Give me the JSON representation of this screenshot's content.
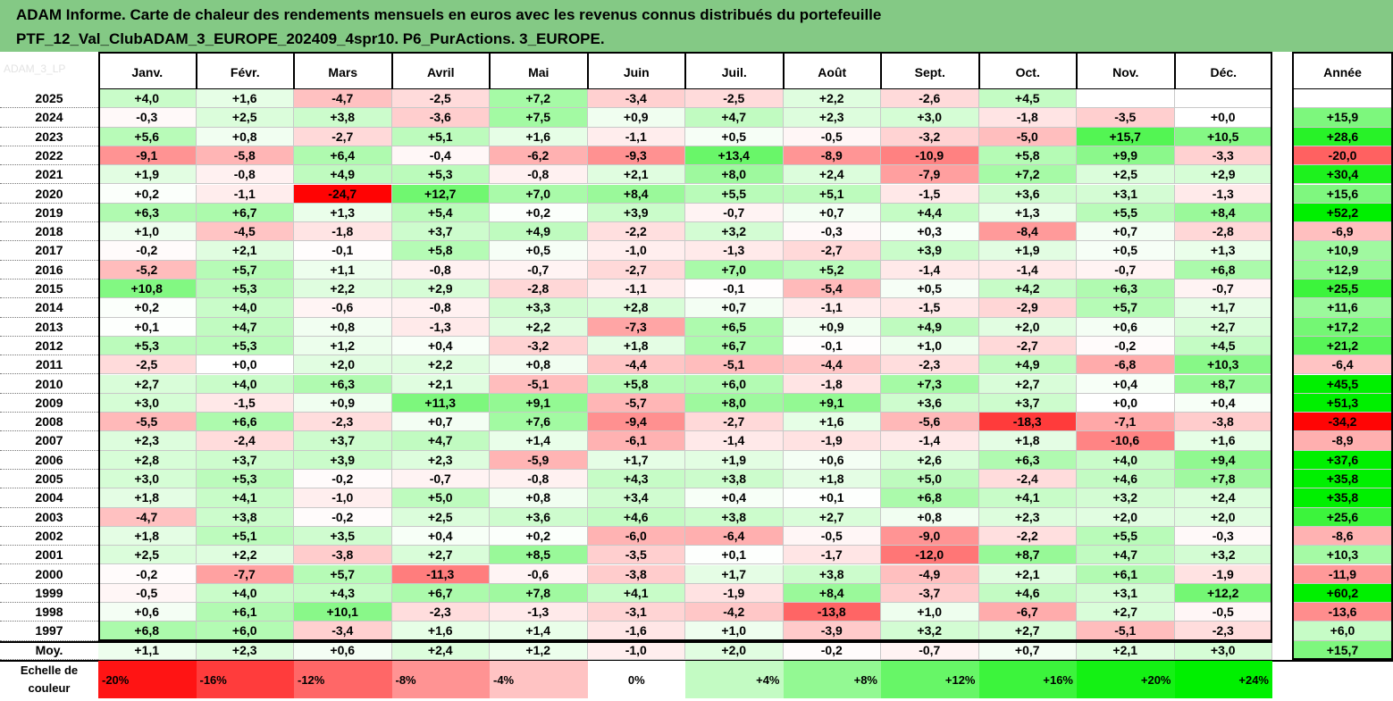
{
  "title": {
    "line1": "ADAM Informe. Carte de chaleur des rendements mensuels en euros avec les revenus connus distribués du portefeuille",
    "line2": "PTF_12_Val_ClubADAM_3_EUROPE_202409_4spr10. P6_PurActions. 3_EUROPE."
  },
  "chart_data": {
    "type": "heatmap",
    "title": "ADAM Informe. Carte de chaleur des rendements mensuels en euros avec les revenus connus distribués du portefeuille PTF_12_Val_ClubADAM_3_EUROPE_202409_4spr10. P6_PurActions. 3_EUROPE.",
    "columns": [
      "Janv.",
      "Févr.",
      "Mars",
      "Avril",
      "Mai",
      "Juin",
      "Juil.",
      "Août",
      "Sept.",
      "Oct.",
      "Nov.",
      "Déc."
    ],
    "annual_column": "Année",
    "rows": [
      {
        "year": "2025",
        "months": [
          4.0,
          1.6,
          -4.7,
          -2.5,
          7.2,
          -3.4,
          -2.5,
          2.2,
          -2.6,
          4.5,
          null,
          null
        ],
        "annual": null
      },
      {
        "year": "2024",
        "months": [
          -0.3,
          2.5,
          3.8,
          -3.6,
          7.5,
          0.9,
          4.7,
          2.3,
          3.0,
          -1.8,
          -3.5,
          0.0
        ],
        "annual": 15.9
      },
      {
        "year": "2023",
        "months": [
          5.6,
          0.8,
          -2.7,
          5.1,
          1.6,
          -1.1,
          0.5,
          -0.5,
          -3.2,
          -5.0,
          15.7,
          10.5
        ],
        "annual": 28.6
      },
      {
        "year": "2022",
        "months": [
          -9.1,
          -5.8,
          6.4,
          -0.4,
          -6.2,
          -9.3,
          13.4,
          -8.9,
          -10.9,
          5.8,
          9.9,
          -3.3
        ],
        "annual": -20.0
      },
      {
        "year": "2021",
        "months": [
          1.9,
          -0.8,
          4.9,
          5.3,
          -0.8,
          2.1,
          8.0,
          2.4,
          -7.9,
          7.2,
          2.5,
          2.9
        ],
        "annual": 30.4
      },
      {
        "year": "2020",
        "months": [
          0.2,
          -1.1,
          -24.7,
          12.7,
          7.0,
          8.4,
          5.5,
          5.1,
          -1.5,
          3.6,
          3.1,
          -1.3
        ],
        "annual": 15.6
      },
      {
        "year": "2019",
        "months": [
          6.3,
          6.7,
          1.3,
          5.4,
          0.2,
          3.9,
          -0.7,
          0.7,
          4.4,
          1.3,
          5.5,
          8.4
        ],
        "annual": 52.2
      },
      {
        "year": "2018",
        "months": [
          1.0,
          -4.5,
          -1.8,
          3.7,
          4.9,
          -2.2,
          3.2,
          -0.3,
          0.3,
          -8.4,
          0.7,
          -2.8
        ],
        "annual": -6.9
      },
      {
        "year": "2017",
        "months": [
          -0.2,
          2.1,
          -0.1,
          5.8,
          0.5,
          -1.0,
          -1.3,
          -2.7,
          3.9,
          1.9,
          0.5,
          1.3
        ],
        "annual": 10.9
      },
      {
        "year": "2016",
        "months": [
          -5.2,
          5.7,
          1.1,
          -0.8,
          -0.7,
          -2.7,
          7.0,
          5.2,
          -1.4,
          -1.4,
          -0.7,
          6.8
        ],
        "annual": 12.9
      },
      {
        "year": "2015",
        "months": [
          10.8,
          5.3,
          2.2,
          2.9,
          -2.8,
          -1.1,
          -0.1,
          -5.4,
          0.5,
          4.2,
          6.3,
          -0.7
        ],
        "annual": 25.5
      },
      {
        "year": "2014",
        "months": [
          0.2,
          4.0,
          -0.6,
          -0.8,
          3.3,
          2.8,
          0.7,
          -1.1,
          -1.5,
          -2.9,
          5.7,
          1.7
        ],
        "annual": 11.6
      },
      {
        "year": "2013",
        "months": [
          0.1,
          4.7,
          0.8,
          -1.3,
          2.2,
          -7.3,
          6.5,
          0.9,
          4.9,
          2.0,
          0.6,
          2.7
        ],
        "annual": 17.2
      },
      {
        "year": "2012",
        "months": [
          5.3,
          5.3,
          1.2,
          0.4,
          -3.2,
          1.8,
          6.7,
          -0.1,
          1.0,
          -2.7,
          -0.2,
          4.5
        ],
        "annual": 21.2
      },
      {
        "year": "2011",
        "months": [
          -2.5,
          0.0,
          2.0,
          2.2,
          0.8,
          -4.4,
          -5.1,
          -4.4,
          -2.3,
          4.9,
          -6.8,
          10.3
        ],
        "annual": -6.4
      },
      {
        "year": "2010",
        "months": [
          2.7,
          4.0,
          6.3,
          2.1,
          -5.1,
          5.8,
          6.0,
          -1.8,
          7.3,
          2.7,
          0.4,
          8.7
        ],
        "annual": 45.5
      },
      {
        "year": "2009",
        "months": [
          3.0,
          -1.5,
          0.9,
          11.3,
          9.1,
          -5.7,
          8.0,
          9.1,
          3.6,
          3.7,
          0.0,
          0.4
        ],
        "annual": 51.3
      },
      {
        "year": "2008",
        "months": [
          -5.5,
          6.6,
          -2.3,
          0.7,
          7.6,
          -9.4,
          -2.7,
          1.6,
          -5.6,
          -18.3,
          -7.1,
          -3.8
        ],
        "annual": -34.2
      },
      {
        "year": "2007",
        "months": [
          2.3,
          -2.4,
          3.7,
          4.7,
          1.4,
          -6.1,
          -1.4,
          -1.9,
          -1.4,
          1.8,
          -10.6,
          1.6
        ],
        "annual": -8.9
      },
      {
        "year": "2006",
        "months": [
          2.8,
          3.7,
          3.9,
          2.3,
          -5.9,
          1.7,
          1.9,
          0.6,
          2.6,
          6.3,
          4.0,
          9.4
        ],
        "annual": 37.6
      },
      {
        "year": "2005",
        "months": [
          3.0,
          5.3,
          -0.2,
          -0.7,
          -0.8,
          4.3,
          3.8,
          1.8,
          5.0,
          -2.4,
          4.6,
          7.8
        ],
        "annual": 35.8
      },
      {
        "year": "2004",
        "months": [
          1.8,
          4.1,
          -1.0,
          5.0,
          0.8,
          3.4,
          0.4,
          0.1,
          6.8,
          4.1,
          3.2,
          2.4
        ],
        "annual": 35.8
      },
      {
        "year": "2003",
        "months": [
          -4.7,
          3.8,
          -0.2,
          2.5,
          3.6,
          4.6,
          3.8,
          2.7,
          0.8,
          2.3,
          2.0,
          2.0
        ],
        "annual": 25.6
      },
      {
        "year": "2002",
        "months": [
          1.8,
          5.1,
          3.5,
          0.4,
          0.2,
          -6.0,
          -6.4,
          -0.5,
          -9.0,
          -2.2,
          5.5,
          -0.3
        ],
        "annual": -8.6
      },
      {
        "year": "2001",
        "months": [
          2.5,
          2.2,
          -3.8,
          2.7,
          8.5,
          -3.5,
          0.1,
          -1.7,
          -12.0,
          8.7,
          4.7,
          3.2
        ],
        "annual": 10.3
      },
      {
        "year": "2000",
        "months": [
          -0.2,
          -7.7,
          5.7,
          -11.3,
          -0.6,
          -3.8,
          1.7,
          3.8,
          -4.9,
          2.1,
          6.1,
          -1.9
        ],
        "annual": -11.9
      },
      {
        "year": "1999",
        "months": [
          -0.5,
          4.0,
          4.3,
          6.7,
          7.8,
          4.1,
          -1.9,
          8.4,
          -3.7,
          4.6,
          3.1,
          12.2
        ],
        "annual": 60.2
      },
      {
        "year": "1998",
        "months": [
          0.6,
          6.1,
          10.1,
          -2.3,
          -1.3,
          -3.1,
          -4.2,
          -13.8,
          1.0,
          -6.7,
          2.7,
          -0.5
        ],
        "annual": -13.6
      },
      {
        "year": "1997",
        "months": [
          6.8,
          6.0,
          -3.4,
          1.6,
          1.4,
          -1.6,
          1.0,
          -3.9,
          3.2,
          2.7,
          -5.1,
          -2.3
        ],
        "annual": 6.0
      }
    ],
    "average": {
      "label": "Moy.",
      "months": [
        1.1,
        2.3,
        0.6,
        2.4,
        1.2,
        -1.0,
        2.0,
        -0.2,
        -0.7,
        0.7,
        2.1,
        3.0
      ],
      "annual": 15.7
    },
    "scale": {
      "label_line1": "Echelle de",
      "label_line2": "couleur",
      "values": [
        -20,
        -16,
        -12,
        -8,
        -4,
        0,
        4,
        8,
        12,
        16,
        20,
        24
      ],
      "labels": [
        "-20%",
        "-16%",
        "-12%",
        "-8%",
        "-4%",
        "0%",
        "+4%",
        "+8%",
        "+12%",
        "+16%",
        "+20%",
        "+24%"
      ]
    }
  },
  "colors": {
    "title_bg": "#84c985",
    "neg_max": "#ff0000",
    "pos_max": "#00ee00",
    "neutral": "#ffffff"
  },
  "watermark": "ADAM_3_LP"
}
